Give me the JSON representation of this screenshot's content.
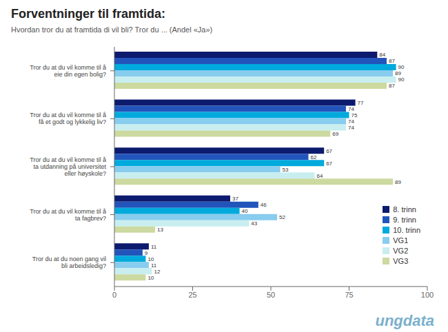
{
  "chart_data": {
    "type": "bar",
    "orientation": "horizontal",
    "title": "Forventninger til framtida:",
    "subtitle": "Hvordan tror du at framtida di vil bli?  Tror du ... (Andel «Ja»)",
    "categories": [
      "Tror du at du vil komme til å\neie din egen bolig?",
      "Tror du at du vil komme til å\nfå et godt og lykkelig liv?",
      "Tror du at du vil komme til å\nta utdanning på universitet\neller høyskole?",
      "Tror du at du vil komme til å\nta fagbrev?",
      "Tror du at du noen gang vil\nbli arbeidsledig?"
    ],
    "series": [
      {
        "name": "8. trinn",
        "color": "#0d1b6e",
        "values": [
          84,
          77,
          67,
          37,
          11
        ]
      },
      {
        "name": "9. trinn",
        "color": "#2255bb",
        "values": [
          87,
          74,
          62,
          46,
          9
        ]
      },
      {
        "name": "10. trinn",
        "color": "#00aadd",
        "values": [
          90,
          75,
          67,
          40,
          10
        ]
      },
      {
        "name": "VG1",
        "color": "#88ccee",
        "values": [
          89,
          74,
          53,
          52,
          11
        ]
      },
      {
        "name": "VG2",
        "color": "#c8eef0",
        "values": [
          90,
          74,
          64,
          43,
          12
        ]
      },
      {
        "name": "VG3",
        "color": "#ccd9a0",
        "values": [
          87,
          69,
          89,
          13,
          10
        ]
      }
    ],
    "xlim": [
      0,
      100
    ],
    "xticks": [
      0,
      25,
      50,
      75,
      100
    ],
    "grid": false,
    "legend": "lower right",
    "data_labels": true,
    "annotations": [
      "ungdata"
    ]
  }
}
